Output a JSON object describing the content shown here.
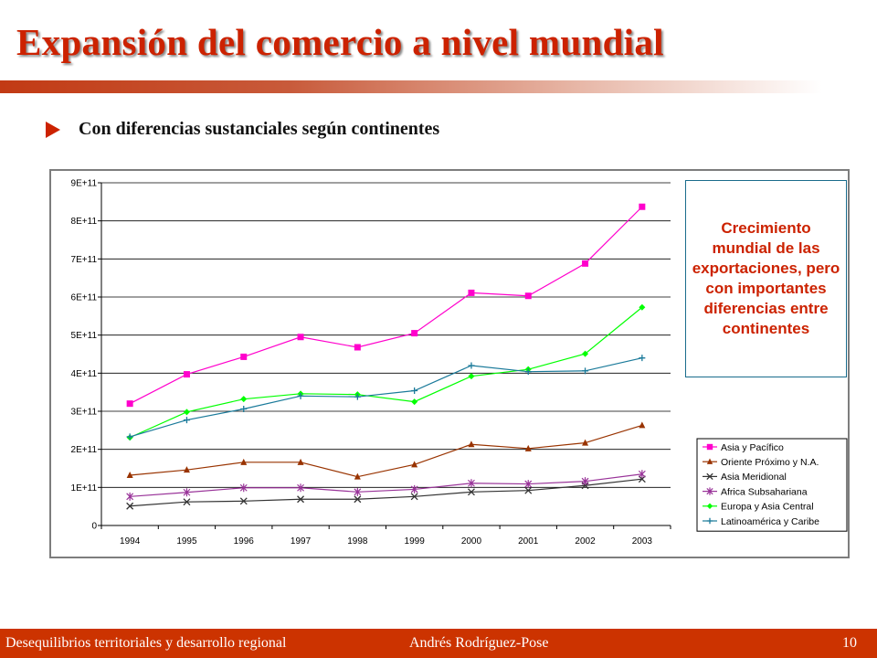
{
  "slide": {
    "title": "Expansión del comercio a nivel mundial",
    "bullet": "Con diferencias sustanciales según continentes",
    "callout": "Crecimiento mundial de las exportaciones, pero con importantes diferencias entre continentes",
    "footer_left": "Desequilibrios territoriales y desarrollo regional",
    "footer_center": "Andrés  Rodríguez-Pose",
    "page_number": "10"
  },
  "colors": {
    "accent": "#cc2200",
    "footer": "#cc3300",
    "callout_border": "#1a6c8c"
  },
  "icons": {
    "bullet": "triangle-right-icon"
  },
  "chart_data": {
    "type": "line",
    "x": [
      "1994",
      "1995",
      "1996",
      "1997",
      "1998",
      "1999",
      "2000",
      "2001",
      "2002",
      "2003"
    ],
    "y_ticks": [
      "0",
      "1E+11",
      "2E+11",
      "3E+11",
      "4E+11",
      "5E+11",
      "6E+11",
      "7E+11",
      "8E+11",
      "9E+11"
    ],
    "ylim": [
      0,
      900000000000
    ],
    "grid": true,
    "legend_position": "bottom-right",
    "series": [
      {
        "name": "Asia y Pacífico",
        "color": "#ff00cc",
        "marker": "square",
        "values": [
          320000000000,
          397000000000,
          443000000000,
          495000000000,
          468000000000,
          505000000000,
          611000000000,
          603000000000,
          688000000000,
          837000000000
        ]
      },
      {
        "name": "Oriente Próximo y N.A.",
        "color": "#993300",
        "marker": "triangle",
        "values": [
          132000000000,
          146000000000,
          166000000000,
          166000000000,
          128000000000,
          160000000000,
          213000000000,
          202000000000,
          217000000000,
          263000000000
        ]
      },
      {
        "name": "Asia Meridional",
        "color": "#333333",
        "marker": "x",
        "values": [
          51000000000,
          62000000000,
          64000000000,
          69000000000,
          69000000000,
          76000000000,
          88000000000,
          92000000000,
          105000000000,
          122000000000
        ]
      },
      {
        "name": "Africa Subsahariana",
        "color": "#993399",
        "marker": "star",
        "values": [
          76000000000,
          87000000000,
          99000000000,
          99000000000,
          88000000000,
          95000000000,
          111000000000,
          109000000000,
          116000000000,
          135000000000
        ]
      },
      {
        "name": "Europa y Asia Central",
        "color": "#00ff00",
        "marker": "diamond",
        "values": [
          231000000000,
          298000000000,
          332000000000,
          346000000000,
          344000000000,
          325000000000,
          392000000000,
          410000000000,
          451000000000,
          573000000000
        ]
      },
      {
        "name": "Latinoamérica y Caribe",
        "color": "#1a7a9a",
        "marker": "plus",
        "values": [
          233000000000,
          277000000000,
          306000000000,
          340000000000,
          338000000000,
          354000000000,
          420000000000,
          404000000000,
          406000000000,
          440000000000
        ]
      }
    ]
  }
}
